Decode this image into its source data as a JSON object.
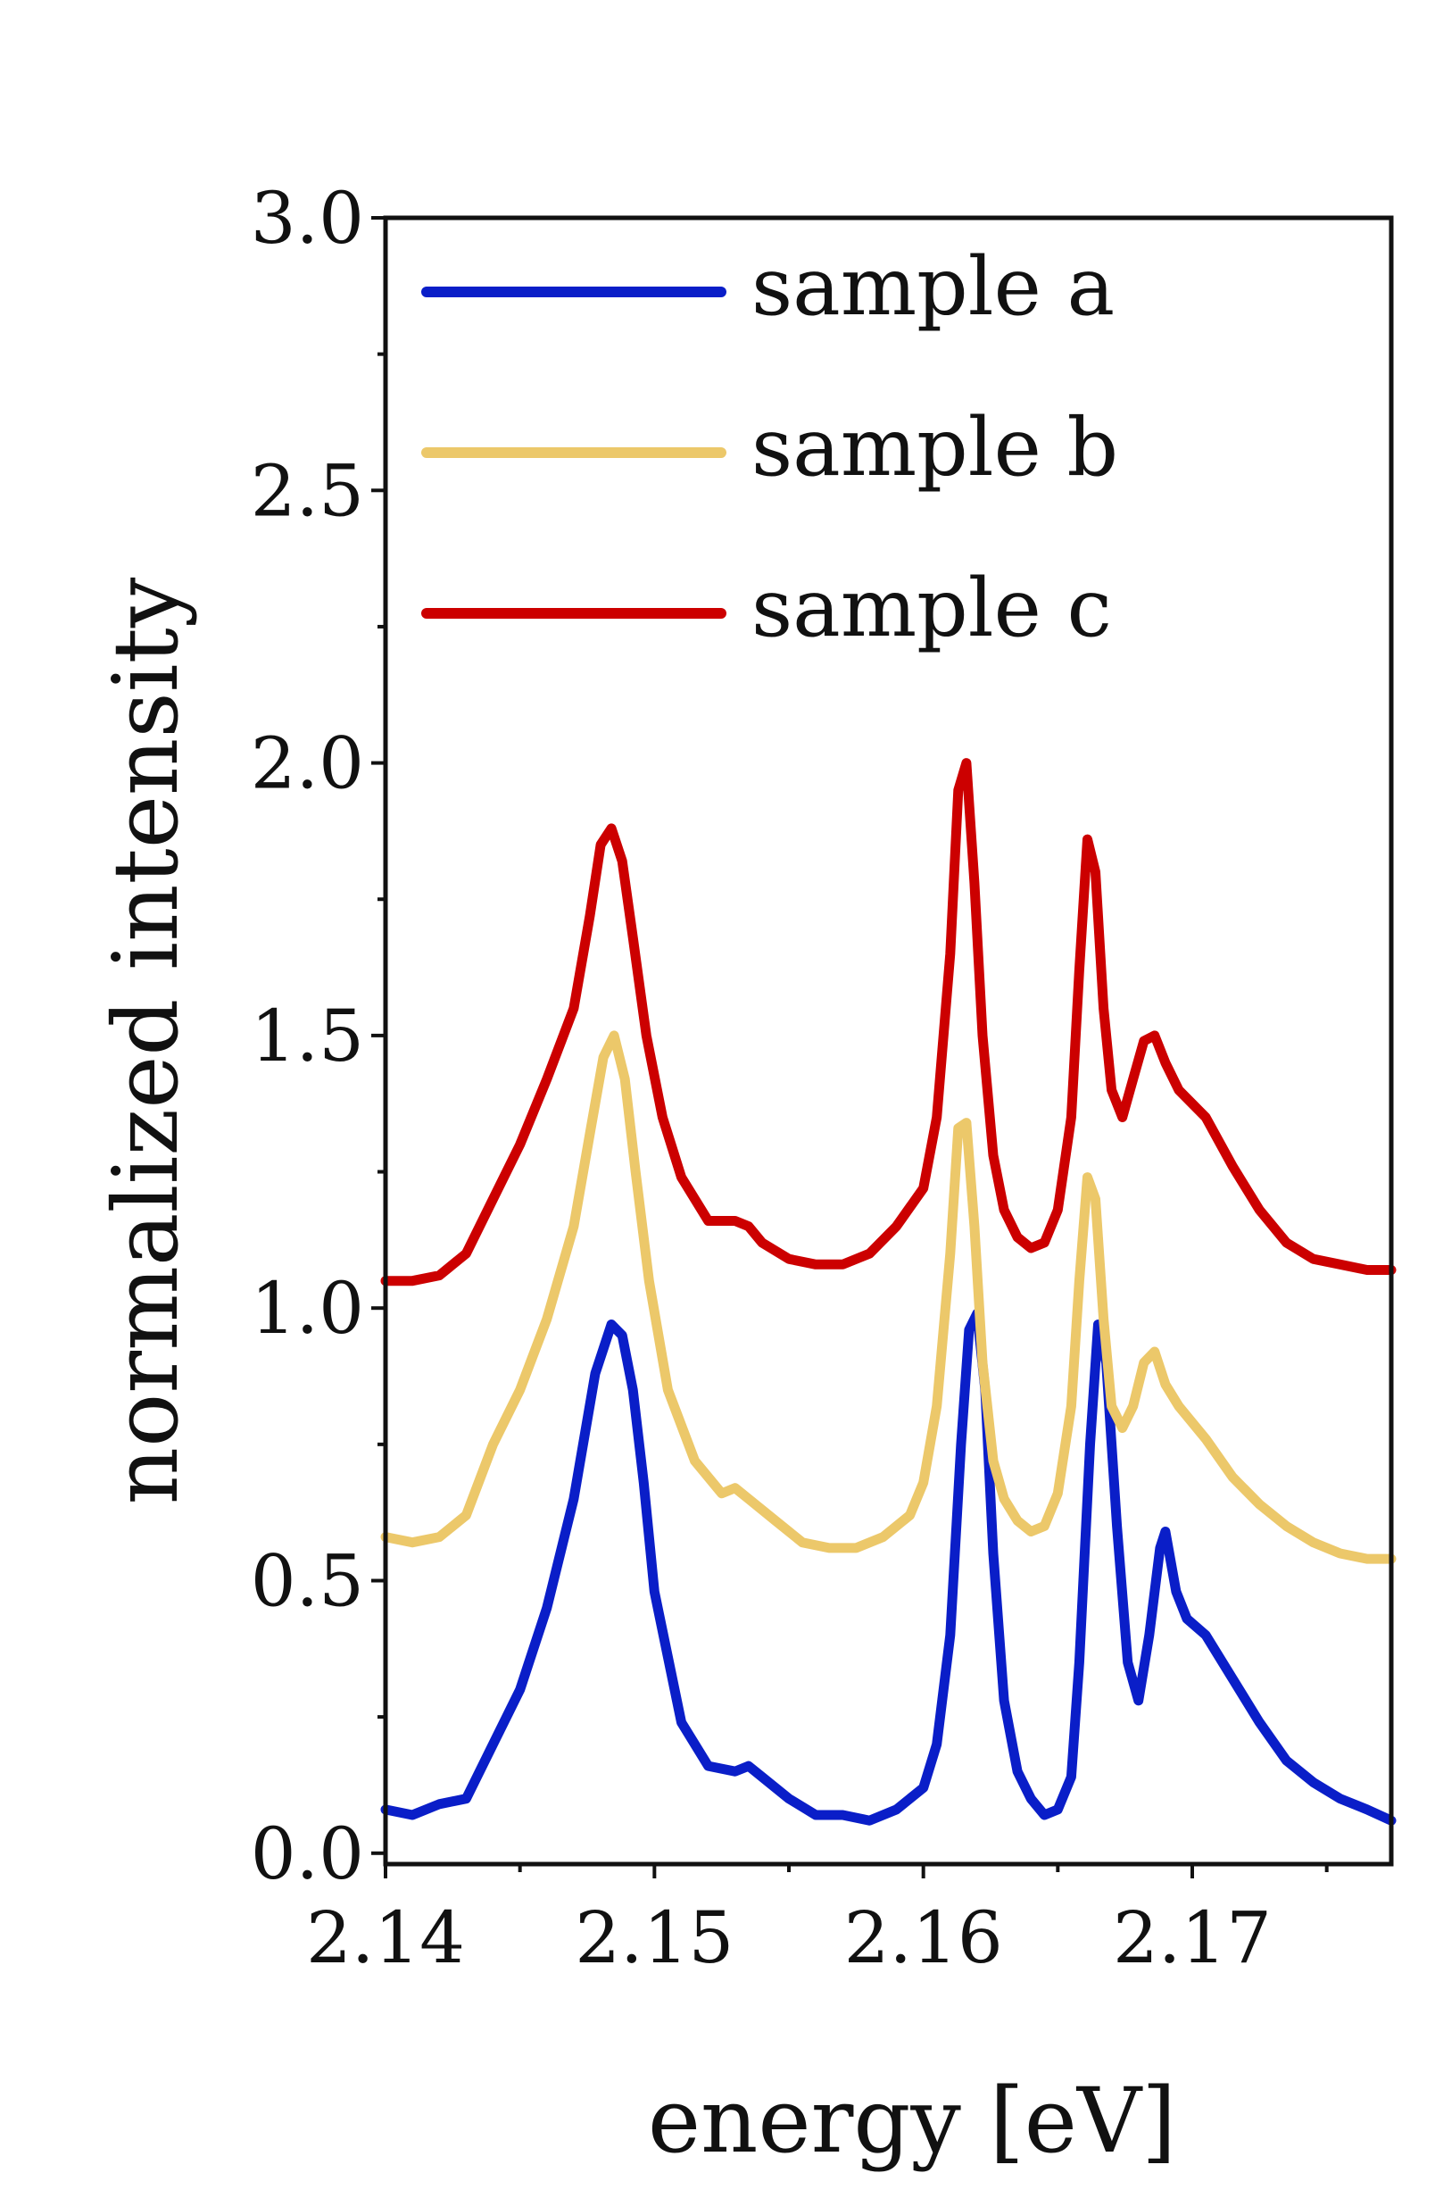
{
  "chart_data": {
    "type": "line",
    "title": "",
    "xlabel": "energy [eV]",
    "ylabel": "normalized intensity",
    "xlim": [
      2.14,
      2.1774
    ],
    "ylim": [
      -0.02,
      3.0
    ],
    "xticks": [
      2.14,
      2.15,
      2.16,
      2.17
    ],
    "xtick_labels": [
      "2.14",
      "2.15",
      "2.16",
      "2.17"
    ],
    "yticks": [
      0.0,
      0.5,
      1.0,
      1.5,
      2.0,
      2.5,
      3.0
    ],
    "ytick_labels": [
      "0.0",
      "0.5",
      "1.0",
      "1.5",
      "2.0",
      "2.5",
      "3.0"
    ],
    "grid": false,
    "legend_position": "top-left",
    "series": [
      {
        "name": "sample a",
        "color": "#0a1ec8",
        "x": [
          2.14,
          2.141,
          2.142,
          2.143,
          2.144,
          2.145,
          2.146,
          2.147,
          2.1478,
          2.1484,
          2.1488,
          2.1492,
          2.1496,
          2.15,
          2.151,
          2.152,
          2.153,
          2.1535,
          2.154,
          2.155,
          2.156,
          2.157,
          2.158,
          2.159,
          2.16,
          2.1605,
          2.161,
          2.1614,
          2.1617,
          2.162,
          2.1623,
          2.1626,
          2.163,
          2.1635,
          2.164,
          2.1645,
          2.165,
          2.1655,
          2.1658,
          2.1662,
          2.1665,
          2.1668,
          2.1672,
          2.1676,
          2.168,
          2.1684,
          2.1688,
          2.169,
          2.1694,
          2.1698,
          2.1705,
          2.1715,
          2.1725,
          2.1735,
          2.1745,
          2.1755,
          2.1765,
          2.1774
        ],
        "y": [
          0.08,
          0.07,
          0.09,
          0.1,
          0.2,
          0.3,
          0.45,
          0.65,
          0.88,
          0.97,
          0.95,
          0.85,
          0.68,
          0.48,
          0.24,
          0.16,
          0.15,
          0.16,
          0.14,
          0.1,
          0.07,
          0.07,
          0.06,
          0.08,
          0.12,
          0.2,
          0.4,
          0.75,
          0.96,
          0.99,
          0.85,
          0.55,
          0.28,
          0.15,
          0.1,
          0.07,
          0.08,
          0.14,
          0.35,
          0.75,
          0.97,
          0.9,
          0.6,
          0.35,
          0.28,
          0.4,
          0.56,
          0.59,
          0.48,
          0.43,
          0.4,
          0.32,
          0.24,
          0.17,
          0.13,
          0.1,
          0.08,
          0.06
        ]
      },
      {
        "name": "sample b",
        "color": "#ecc86a",
        "x": [
          2.14,
          2.141,
          2.142,
          2.143,
          2.144,
          2.145,
          2.146,
          2.147,
          2.1476,
          2.1481,
          2.1485,
          2.1489,
          2.1493,
          2.1498,
          2.1505,
          2.1515,
          2.1525,
          2.153,
          2.1535,
          2.1545,
          2.1555,
          2.1565,
          2.1575,
          2.1585,
          2.1595,
          2.16,
          2.1605,
          2.161,
          2.1613,
          2.1616,
          2.1619,
          2.1622,
          2.1626,
          2.163,
          2.1635,
          2.164,
          2.1645,
          2.165,
          2.1655,
          2.1658,
          2.1661,
          2.1664,
          2.1667,
          2.167,
          2.1674,
          2.1678,
          2.1682,
          2.1686,
          2.169,
          2.1695,
          2.1705,
          2.1715,
          2.1725,
          2.1735,
          2.1745,
          2.1755,
          2.1765,
          2.1774
        ],
        "y": [
          0.58,
          0.57,
          0.58,
          0.62,
          0.75,
          0.85,
          0.98,
          1.15,
          1.32,
          1.46,
          1.5,
          1.42,
          1.25,
          1.05,
          0.85,
          0.72,
          0.66,
          0.67,
          0.65,
          0.61,
          0.57,
          0.56,
          0.56,
          0.58,
          0.62,
          0.68,
          0.82,
          1.1,
          1.33,
          1.34,
          1.15,
          0.9,
          0.72,
          0.65,
          0.61,
          0.59,
          0.6,
          0.66,
          0.82,
          1.05,
          1.24,
          1.2,
          0.98,
          0.82,
          0.78,
          0.82,
          0.9,
          0.92,
          0.86,
          0.82,
          0.76,
          0.69,
          0.64,
          0.6,
          0.57,
          0.55,
          0.54,
          0.54
        ]
      },
      {
        "name": "sample c",
        "color": "#cc0000",
        "x": [
          2.14,
          2.141,
          2.142,
          2.143,
          2.144,
          2.145,
          2.146,
          2.147,
          2.1476,
          2.148,
          2.1484,
          2.1488,
          2.1492,
          2.1497,
          2.1503,
          2.151,
          2.152,
          2.153,
          2.1535,
          2.154,
          2.155,
          2.156,
          2.157,
          2.158,
          2.159,
          2.16,
          2.1605,
          2.161,
          2.1613,
          2.1616,
          2.1619,
          2.1622,
          2.1626,
          2.163,
          2.1635,
          2.164,
          2.1645,
          2.165,
          2.1655,
          2.1658,
          2.1661,
          2.1664,
          2.1667,
          2.167,
          2.1674,
          2.1678,
          2.1682,
          2.1686,
          2.169,
          2.1695,
          2.1705,
          2.1715,
          2.1725,
          2.1735,
          2.1745,
          2.1755,
          2.1765,
          2.1774
        ],
        "y": [
          1.05,
          1.05,
          1.06,
          1.1,
          1.2,
          1.3,
          1.42,
          1.55,
          1.72,
          1.85,
          1.88,
          1.82,
          1.68,
          1.5,
          1.35,
          1.24,
          1.16,
          1.16,
          1.15,
          1.12,
          1.09,
          1.08,
          1.08,
          1.1,
          1.15,
          1.22,
          1.35,
          1.65,
          1.95,
          2.0,
          1.78,
          1.5,
          1.28,
          1.18,
          1.13,
          1.11,
          1.12,
          1.18,
          1.35,
          1.62,
          1.86,
          1.8,
          1.55,
          1.4,
          1.35,
          1.42,
          1.49,
          1.5,
          1.45,
          1.4,
          1.35,
          1.26,
          1.18,
          1.12,
          1.09,
          1.08,
          1.07,
          1.07
        ]
      }
    ]
  }
}
